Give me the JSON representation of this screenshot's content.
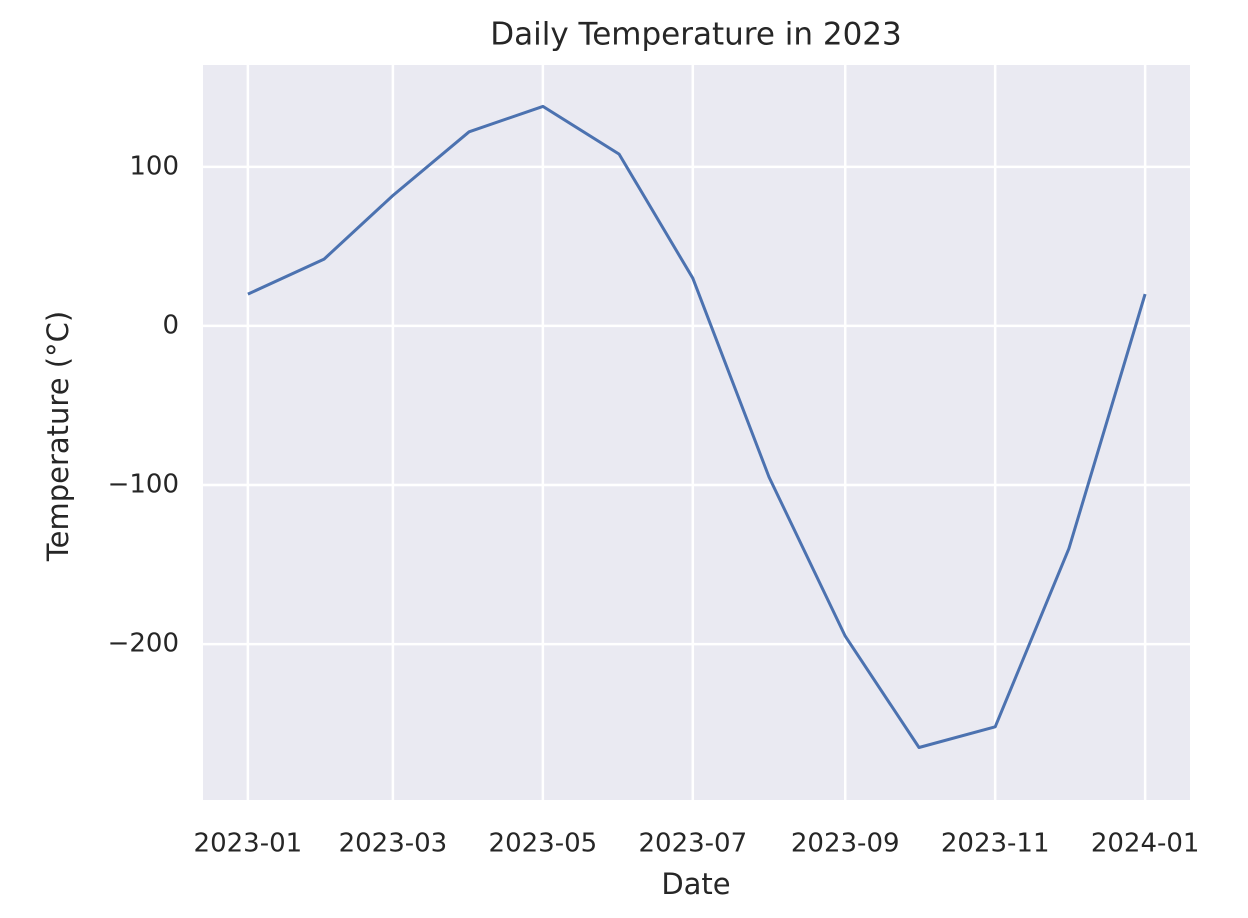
{
  "chart_data": {
    "type": "line",
    "title": "Daily Temperature in 2023",
    "x_label": "Date",
    "y_label": "Temperature (°C)",
    "x": [
      "2023-01",
      "2023-02",
      "2023-03",
      "2023-04",
      "2023-05",
      "2023-06",
      "2023-07",
      "2023-08",
      "2023-09",
      "2023-10",
      "2023-11",
      "2023-12",
      "2024-01"
    ],
    "series": [
      {
        "name": "Temperature",
        "color": "#4c72b0",
        "values": [
          20,
          42,
          82,
          122,
          138,
          108,
          30,
          -95,
          -195,
          -265,
          -252,
          -140,
          20
        ]
      }
    ],
    "xticks": [
      "2023-01",
      "2023-03",
      "2023-05",
      "2023-07",
      "2023-09",
      "2023-11",
      "2024-01"
    ],
    "ylim": [
      -298,
      164
    ],
    "yticks": [
      {
        "value": -200,
        "label": "−200"
      },
      {
        "value": -100,
        "label": "−100"
      },
      0,
      100
    ],
    "grid": true,
    "background": "#eaeaf2"
  }
}
